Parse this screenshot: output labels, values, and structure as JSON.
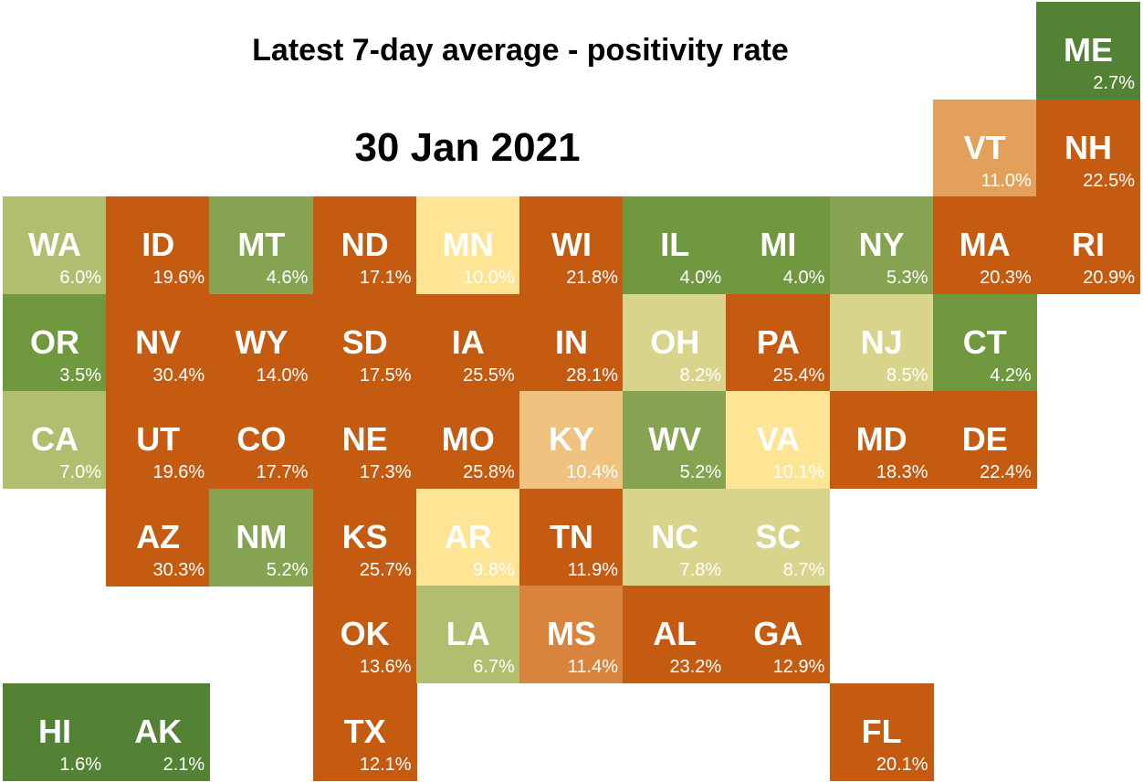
{
  "title": "Latest 7-day average - positivity rate",
  "date": "30 Jan 2021",
  "chart_data": {
    "type": "heatmap",
    "title": "Latest 7-day average - positivity rate",
    "subtitle": "30 Jan 2021",
    "unit": "%",
    "colors": {
      "dark_green": "#548235",
      "green": "#70983f",
      "mid_green": "#86a352",
      "olive": "#b3bd6f",
      "pale_olive": "#d8d48c",
      "pale_yellow": "#fde595",
      "light_orange": "#f0c27f",
      "orange": "#e3a05b",
      "mid_orange": "#d8843e",
      "dark_orange": "#c55a11"
    },
    "states": [
      {
        "abbr": "ME",
        "value": 2.7,
        "label": "2.7%",
        "row": 0,
        "col": 10
      },
      {
        "abbr": "VT",
        "value": 11.0,
        "label": "11.0%",
        "row": 1,
        "col": 9
      },
      {
        "abbr": "NH",
        "value": 22.5,
        "label": "22.5%",
        "row": 1,
        "col": 10
      },
      {
        "abbr": "WA",
        "value": 6.0,
        "label": "6.0%",
        "row": 2,
        "col": 0
      },
      {
        "abbr": "ID",
        "value": 19.6,
        "label": "19.6%",
        "row": 2,
        "col": 1
      },
      {
        "abbr": "MT",
        "value": 4.6,
        "label": "4.6%",
        "row": 2,
        "col": 2
      },
      {
        "abbr": "ND",
        "value": 17.1,
        "label": "17.1%",
        "row": 2,
        "col": 3
      },
      {
        "abbr": "MN",
        "value": 10.0,
        "label": "10.0%",
        "row": 2,
        "col": 4
      },
      {
        "abbr": "WI",
        "value": 21.8,
        "label": "21.8%",
        "row": 2,
        "col": 5
      },
      {
        "abbr": "IL",
        "value": 4.0,
        "label": "4.0%",
        "row": 2,
        "col": 6
      },
      {
        "abbr": "MI",
        "value": 4.0,
        "label": "4.0%",
        "row": 2,
        "col": 7
      },
      {
        "abbr": "NY",
        "value": 5.3,
        "label": "5.3%",
        "row": 2,
        "col": 8
      },
      {
        "abbr": "MA",
        "value": 20.3,
        "label": "20.3%",
        "row": 2,
        "col": 9
      },
      {
        "abbr": "RI",
        "value": 20.9,
        "label": "20.9%",
        "row": 2,
        "col": 10
      },
      {
        "abbr": "OR",
        "value": 3.5,
        "label": "3.5%",
        "row": 3,
        "col": 0
      },
      {
        "abbr": "NV",
        "value": 30.4,
        "label": "30.4%",
        "row": 3,
        "col": 1
      },
      {
        "abbr": "WY",
        "value": 14.0,
        "label": "14.0%",
        "row": 3,
        "col": 2
      },
      {
        "abbr": "SD",
        "value": 17.5,
        "label": "17.5%",
        "row": 3,
        "col": 3
      },
      {
        "abbr": "IA",
        "value": 25.5,
        "label": "25.5%",
        "row": 3,
        "col": 4
      },
      {
        "abbr": "IN",
        "value": 28.1,
        "label": "28.1%",
        "row": 3,
        "col": 5
      },
      {
        "abbr": "OH",
        "value": 8.2,
        "label": "8.2%",
        "row": 3,
        "col": 6
      },
      {
        "abbr": "PA",
        "value": 25.4,
        "label": "25.4%",
        "row": 3,
        "col": 7
      },
      {
        "abbr": "NJ",
        "value": 8.5,
        "label": "8.5%",
        "row": 3,
        "col": 8
      },
      {
        "abbr": "CT",
        "value": 4.2,
        "label": "4.2%",
        "row": 3,
        "col": 9
      },
      {
        "abbr": "CA",
        "value": 7.0,
        "label": "7.0%",
        "row": 4,
        "col": 0
      },
      {
        "abbr": "UT",
        "value": 19.6,
        "label": "19.6%",
        "row": 4,
        "col": 1
      },
      {
        "abbr": "CO",
        "value": 17.7,
        "label": "17.7%",
        "row": 4,
        "col": 2
      },
      {
        "abbr": "NE",
        "value": 17.3,
        "label": "17.3%",
        "row": 4,
        "col": 3
      },
      {
        "abbr": "MO",
        "value": 25.8,
        "label": "25.8%",
        "row": 4,
        "col": 4
      },
      {
        "abbr": "KY",
        "value": 10.4,
        "label": "10.4%",
        "row": 4,
        "col": 5
      },
      {
        "abbr": "WV",
        "value": 5.2,
        "label": "5.2%",
        "row": 4,
        "col": 6
      },
      {
        "abbr": "VA",
        "value": 10.1,
        "label": "10.1%",
        "row": 4,
        "col": 7
      },
      {
        "abbr": "MD",
        "value": 18.3,
        "label": "18.3%",
        "row": 4,
        "col": 8
      },
      {
        "abbr": "DE",
        "value": 22.4,
        "label": "22.4%",
        "row": 4,
        "col": 9
      },
      {
        "abbr": "AZ",
        "value": 30.3,
        "label": "30.3%",
        "row": 5,
        "col": 1
      },
      {
        "abbr": "NM",
        "value": 5.2,
        "label": "5.2%",
        "row": 5,
        "col": 2
      },
      {
        "abbr": "KS",
        "value": 25.7,
        "label": "25.7%",
        "row": 5,
        "col": 3
      },
      {
        "abbr": "AR",
        "value": 9.8,
        "label": "9.8%",
        "row": 5,
        "col": 4
      },
      {
        "abbr": "TN",
        "value": 11.9,
        "label": "11.9%",
        "row": 5,
        "col": 5
      },
      {
        "abbr": "NC",
        "value": 7.8,
        "label": "7.8%",
        "row": 5,
        "col": 6
      },
      {
        "abbr": "SC",
        "value": 8.7,
        "label": "8.7%",
        "row": 5,
        "col": 7
      },
      {
        "abbr": "OK",
        "value": 13.6,
        "label": "13.6%",
        "row": 6,
        "col": 3
      },
      {
        "abbr": "LA",
        "value": 6.7,
        "label": "6.7%",
        "row": 6,
        "col": 4
      },
      {
        "abbr": "MS",
        "value": 11.4,
        "label": "11.4%",
        "row": 6,
        "col": 5
      },
      {
        "abbr": "AL",
        "value": 23.2,
        "label": "23.2%",
        "row": 6,
        "col": 6
      },
      {
        "abbr": "GA",
        "value": 12.9,
        "label": "12.9%",
        "row": 6,
        "col": 7
      },
      {
        "abbr": "HI",
        "value": 1.6,
        "label": "1.6%",
        "row": 7,
        "col": 0
      },
      {
        "abbr": "AK",
        "value": 2.1,
        "label": "2.1%",
        "row": 7,
        "col": 1
      },
      {
        "abbr": "TX",
        "value": 12.1,
        "label": "12.1%",
        "row": 7,
        "col": 3
      },
      {
        "abbr": "FL",
        "value": 20.1,
        "label": "20.1%",
        "row": 7,
        "col": 8
      }
    ]
  }
}
